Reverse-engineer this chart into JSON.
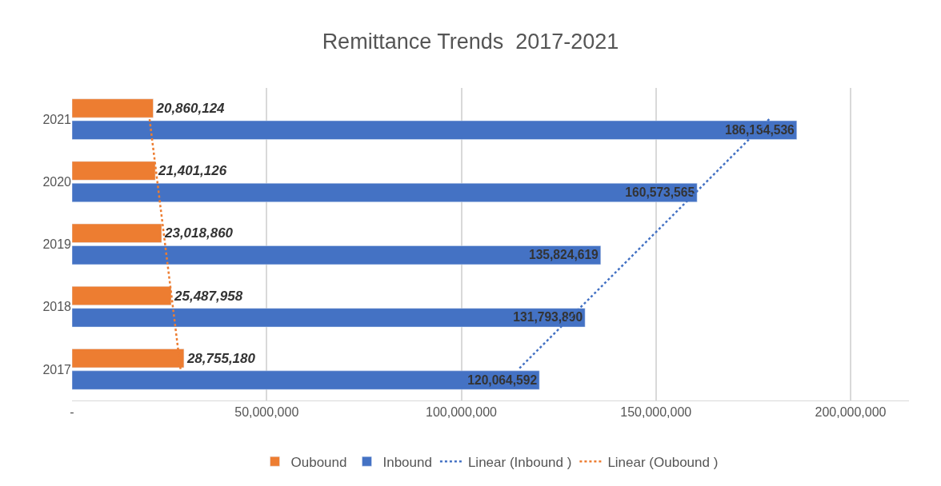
{
  "chart_data": {
    "type": "bar",
    "orientation": "horizontal",
    "title": "Remittance Trends  2017-2021",
    "categories": [
      "2021",
      "2020",
      "2019",
      "2018",
      "2017"
    ],
    "series": [
      {
        "name": "Oubound",
        "color": "#ed7d31",
        "values": [
          20860124,
          21401126,
          23018860,
          25487958,
          28755180
        ],
        "value_labels": [
          "20,860,124",
          "21,401,126",
          "23,018,860",
          "25,487,958",
          "28,755,180"
        ]
      },
      {
        "name": "Inbound",
        "color": "#4472c4",
        "values": [
          186184536,
          160573565,
          135824619,
          131793890,
          120064592
        ],
        "value_labels": [
          "186,184,536",
          "160,573,565",
          "135,824,619",
          "131,793,890",
          "120,064,592"
        ]
      },
      {
        "name": "Linear (Inbound )",
        "type": "line",
        "color": "#4472c4",
        "line_style": "dotted",
        "values": [
          179090000,
          162990000,
          146890000,
          130790000,
          114690000
        ]
      },
      {
        "name": "Linear (Oubound )",
        "type": "line",
        "color": "#ed7d31",
        "line_style": "dotted",
        "values": [
          19930000,
          21920000,
          23910000,
          25900000,
          27880000
        ]
      }
    ],
    "xlim": [
      0,
      215000000
    ],
    "xticks": [
      {
        "value": 0,
        "label": "-"
      },
      {
        "value": 50000000,
        "label": "50,000,000"
      },
      {
        "value": 100000000,
        "label": "100,000,000"
      },
      {
        "value": 150000000,
        "label": "150,000,000"
      },
      {
        "value": 200000000,
        "label": "200,000,000"
      }
    ],
    "grid": "x",
    "legend": "bottom"
  }
}
